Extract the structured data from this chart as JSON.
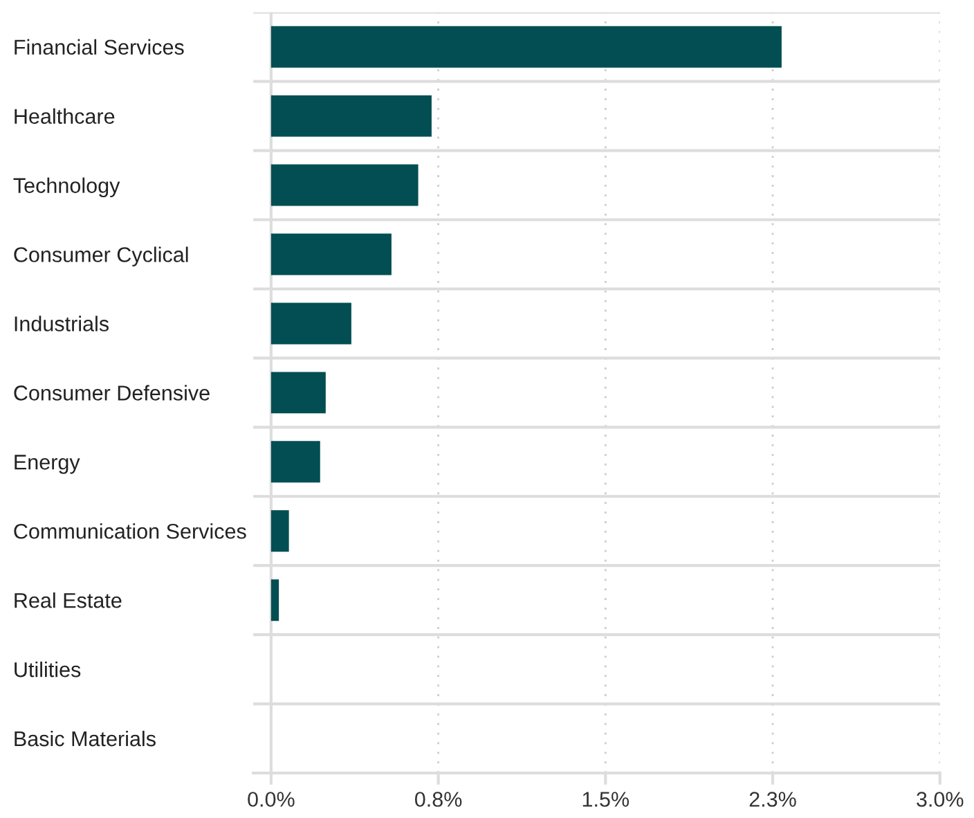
{
  "chart_data": {
    "type": "bar",
    "orientation": "horizontal",
    "categories": [
      "Financial Services",
      "Healthcare",
      "Technology",
      "Consumer Cyclical",
      "Industrials",
      "Consumer Defensive",
      "Energy",
      "Communication Services",
      "Real Estate",
      "Utilities",
      "Basic Materials"
    ],
    "values": [
      2.29,
      0.72,
      0.66,
      0.54,
      0.36,
      0.245,
      0.22,
      0.08,
      0.035,
      0,
      0
    ],
    "color": "#024e52",
    "xlim": [
      -0.08,
      3.0
    ],
    "xticks": [
      {
        "value": 0,
        "label": "0.0%"
      },
      {
        "value": 0.75,
        "label": "0.8%"
      },
      {
        "value": 1.5,
        "label": "1.5%"
      },
      {
        "value": 2.25,
        "label": "2.3%"
      },
      {
        "value": 3.0,
        "label": "3.0%"
      }
    ],
    "grid": true
  }
}
